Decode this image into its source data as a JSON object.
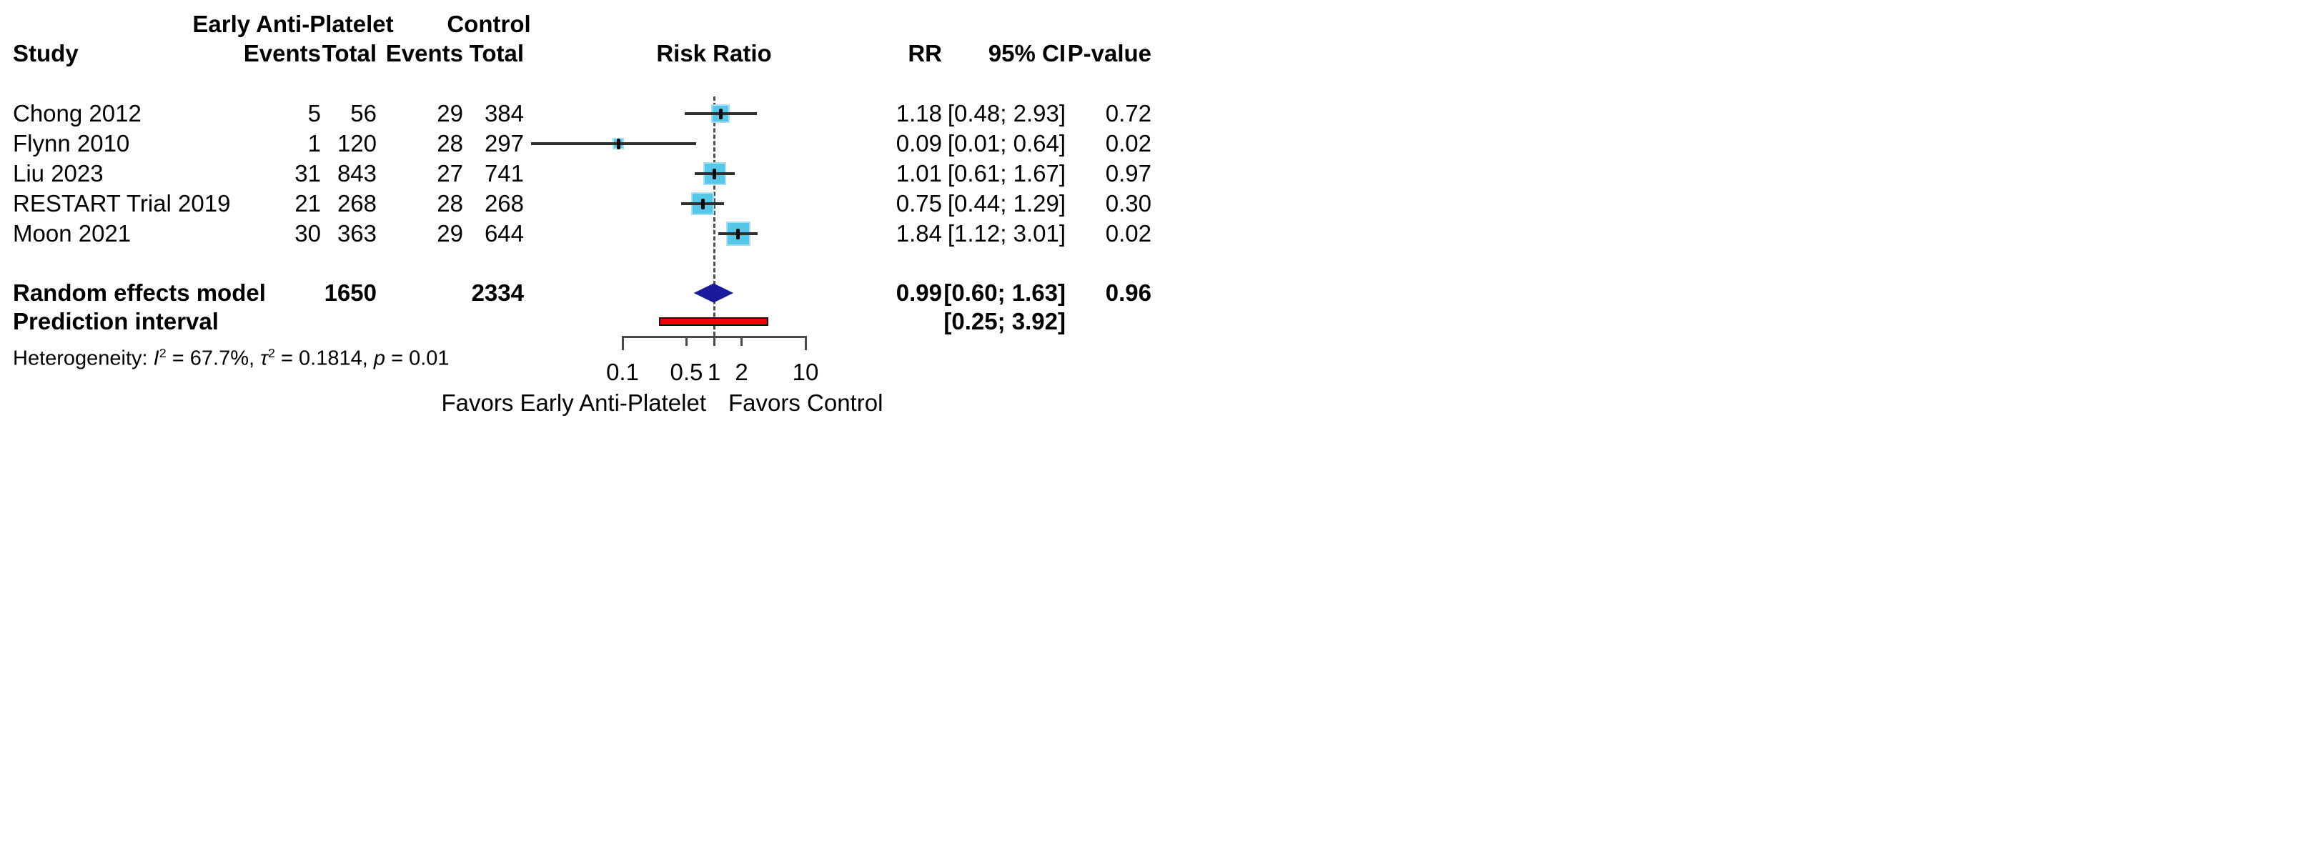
{
  "header": {
    "group1": "Early Anti-Platelet",
    "group2": "Control",
    "col_study": "Study",
    "col_events1": "Events",
    "col_total1": "Total",
    "col_events2": "Events",
    "col_total2": "Total",
    "col_risk_ratio": "Risk Ratio",
    "col_rr": "RR",
    "col_ci": "95% CI",
    "col_p": "P-value"
  },
  "table": {
    "rows": [
      {
        "name": "Chong 2012",
        "e_events": "5",
        "e_total": "56",
        "c_events": "29",
        "c_total": "384",
        "rr": "1.18",
        "ci": "[0.48; 2.93]",
        "p": "0.72"
      },
      {
        "name": "Flynn 2010",
        "e_events": "1",
        "e_total": "120",
        "c_events": "28",
        "c_total": "297",
        "rr": "0.09",
        "ci": "[0.01; 0.64]",
        "p": "0.02"
      },
      {
        "name": "Liu 2023",
        "e_events": "31",
        "e_total": "843",
        "c_events": "27",
        "c_total": "741",
        "rr": "1.01",
        "ci": "[0.61; 1.67]",
        "p": "0.97"
      },
      {
        "name": "RESTART Trial 2019",
        "e_events": "21",
        "e_total": "268",
        "c_events": "28",
        "c_total": "268",
        "rr": "0.75",
        "ci": "[0.44; 1.29]",
        "p": "0.30"
      },
      {
        "name": "Moon 2021",
        "e_events": "30",
        "e_total": "363",
        "c_events": "29",
        "c_total": "644",
        "rr": "1.84",
        "ci": "[1.12; 3.01]",
        "p": "0.02"
      }
    ]
  },
  "summary": {
    "label": "Random effects model",
    "e_total": "1650",
    "c_total": "2334",
    "rr": "0.99",
    "ci": "[0.60; 1.63]",
    "p": "0.96"
  },
  "prediction": {
    "label": "Prediction interval",
    "ci": "[0.25; 3.92]"
  },
  "heterogeneity": {
    "prefix": "Heterogeneity: ",
    "i_sym": "I",
    "sup1": "2",
    "part1": " = 67.7%, ",
    "tau_sym": "τ",
    "sup2": "2",
    "part2": " = 0.1814, ",
    "p_sym": "p",
    "part3": " = 0.01"
  },
  "axis": {
    "tick_labels": [
      "0.1",
      "0.5",
      "1",
      "2",
      "10"
    ],
    "favors_left": "Favors Early Anti-Platelet",
    "favors_right": "Favors Control"
  },
  "colors": {
    "square": "#55c8e9",
    "square_border": "#a9dff2",
    "diamond": "#1a1a9c",
    "prediction_bar": "#f40000",
    "ci_line": "#2f2f2f",
    "axis": "#4a4a4a",
    "ref_line": "#4f4f4f",
    "text": "#000000"
  },
  "chart_data": {
    "type": "scatter",
    "subtype": "forest-plot",
    "title": "Risk Ratio",
    "x_scale": "log10",
    "x_range": [
      0.1,
      10
    ],
    "x_ticks": [
      0.1,
      0.5,
      1,
      2,
      10
    ],
    "ref_line": 1,
    "legend_position": "none",
    "grid": false,
    "studies": [
      {
        "study": "Chong 2012",
        "intervention_events": 5,
        "intervention_total": 56,
        "control_events": 29,
        "control_total": 384,
        "rr": 1.18,
        "ci95": [
          0.48,
          2.93
        ],
        "p_value": 0.72,
        "marker_px": 26
      },
      {
        "study": "Flynn 2010",
        "intervention_events": 1,
        "intervention_total": 120,
        "control_events": 28,
        "control_total": 297,
        "rr": 0.09,
        "ci95": [
          0.01,
          0.64
        ],
        "p_value": 0.02,
        "marker_px": 16
      },
      {
        "study": "Liu 2023",
        "intervention_events": 31,
        "intervention_total": 843,
        "control_events": 27,
        "control_total": 741,
        "rr": 1.01,
        "ci95": [
          0.61,
          1.67
        ],
        "p_value": 0.97,
        "marker_px": 32
      },
      {
        "study": "RESTART Trial 2019",
        "intervention_events": 21,
        "intervention_total": 268,
        "control_events": 28,
        "control_total": 268,
        "rr": 0.75,
        "ci95": [
          0.44,
          1.29
        ],
        "p_value": 0.3,
        "marker_px": 32
      },
      {
        "study": "Moon 2021",
        "intervention_events": 30,
        "intervention_total": 363,
        "control_events": 29,
        "control_total": 644,
        "rr": 1.84,
        "ci95": [
          1.12,
          3.01
        ],
        "p_value": 0.02,
        "marker_px": 34
      }
    ],
    "summary": {
      "model": "Random effects model",
      "intervention_total": 1650,
      "control_total": 2334,
      "rr": 0.99,
      "ci95": [
        0.6,
        1.63
      ],
      "p_value": 0.96
    },
    "prediction_interval": [
      0.25,
      3.92
    ],
    "heterogeneity": {
      "I2_pct": 67.7,
      "tau2": 0.1814,
      "p": 0.01
    },
    "xlabel_left": "Favors Early Anti-Platelet",
    "xlabel_right": "Favors Control"
  }
}
